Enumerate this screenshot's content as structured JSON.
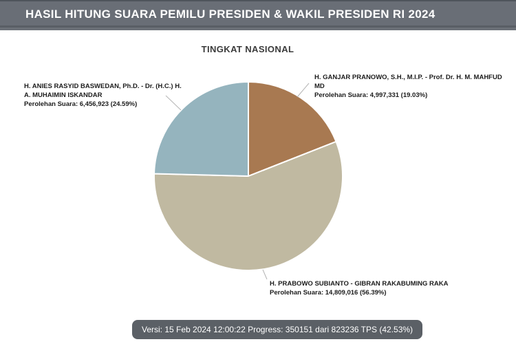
{
  "header": {
    "title": "HASIL HITUNG SUARA PEMILU PRESIDEN & WAKIL PRESIDEN RI 2024"
  },
  "subtitle": "TINGKAT NASIONAL",
  "chart_data": {
    "type": "pie",
    "title": "TINGKAT NASIONAL",
    "start_angle_deg": 0,
    "direction": "clockwise",
    "slices": [
      {
        "name": "H. GANJAR PRANOWO, S.H., M.I.P. - Prof. Dr. H. M. MAHFUD MD",
        "votes": 4997331,
        "votes_display": "4,997,331",
        "pct": 19.03,
        "color": "#A87951"
      },
      {
        "name": "H. PRABOWO SUBIANTO - GIBRAN RAKABUMING RAKA",
        "votes": 14809016,
        "votes_display": "14,809,016",
        "pct": 56.39,
        "color": "#C0B9A1"
      },
      {
        "name": "H. ANIES RASYID BASWEDAN, Ph.D. - Dr. (H.C.) H. A. MUHAIMIN ISKANDAR",
        "votes": 6456923,
        "votes_display": "6,456,923",
        "pct": 24.59,
        "color": "#95B4BE"
      }
    ],
    "legend_position": "outside-callouts",
    "grid": false
  },
  "labels": {
    "anies": {
      "name_line1": "H. ANIES RASYID BASWEDAN, Ph.D. - Dr. (H.C.) H.",
      "name_line2": "A. MUHAIMIN ISKANDAR",
      "votes_line": "Perolehan Suara: 6,456,923 (24.59%)"
    },
    "ganjar": {
      "name_line1": "H. GANJAR PRANOWO, S.H., M.I.P. - Prof. Dr. H. M. MAHFUD MD",
      "votes_line": "Perolehan Suara: 4,997,331 (19.03%)"
    },
    "prabowo": {
      "name_line1": "H. PRABOWO SUBIANTO - GIBRAN RAKABUMING RAKA",
      "votes_line": "Perolehan Suara: 14,809,016 (56.39%)"
    }
  },
  "status": {
    "text": "Versi: 15 Feb 2024 12:00:22 Progress: 350151 dari 823236 TPS (42.53%)"
  },
  "colors": {
    "header_bg": "#696E76",
    "status_bg": "#5B6066",
    "slice_border": "#FFFFFF",
    "leader_line": "#B3B3B3",
    "ganjar": "#A87951",
    "prabowo": "#C0B9A1",
    "anies": "#95B4BE"
  }
}
